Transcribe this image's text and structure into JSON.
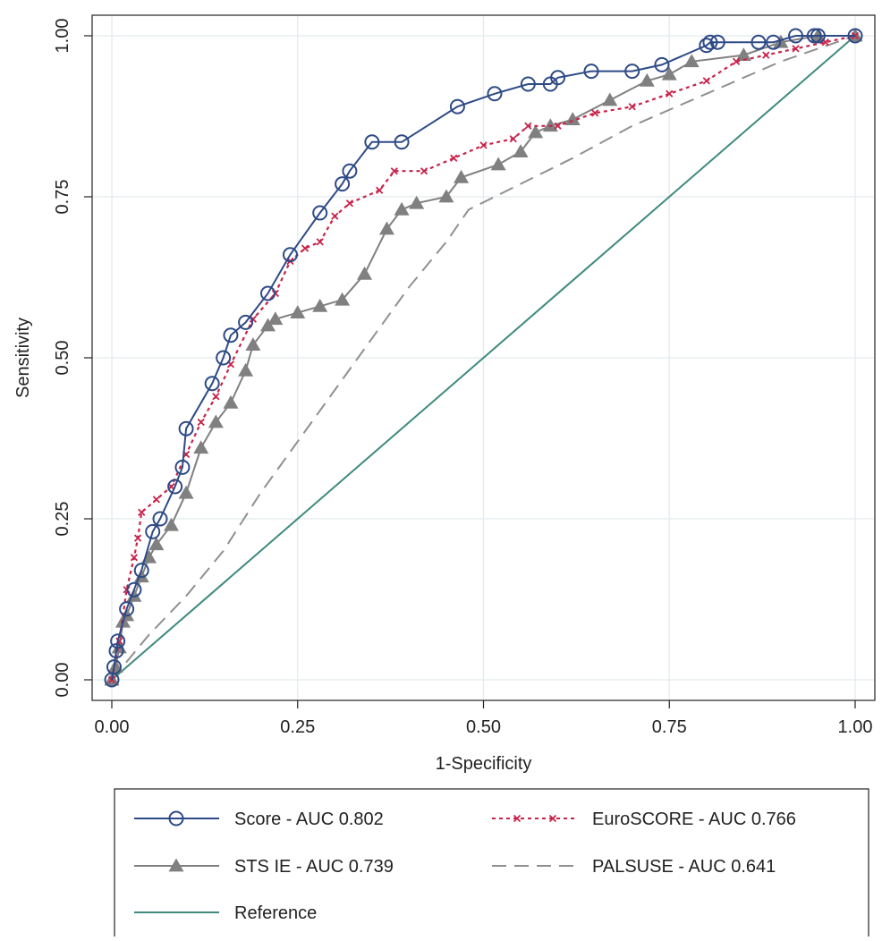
{
  "chart_data": {
    "type": "line",
    "title": "",
    "xlabel": "1-Specificity",
    "ylabel": "Sensitivity",
    "xlim": [
      0,
      1
    ],
    "ylim": [
      0,
      1
    ],
    "x_ticks": [
      "0.00",
      "0.25",
      "0.50",
      "0.75",
      "1.00"
    ],
    "y_ticks": [
      "0.00",
      "0.25",
      "0.50",
      "0.75",
      "1.00"
    ],
    "grid": true,
    "legend_position": "bottom",
    "series": [
      {
        "name": "Score - AUC 0.802",
        "color": "#2e4a86",
        "style": "solid",
        "marker": "circle-open",
        "points": [
          [
            0,
            0
          ],
          [
            0.003,
            0.02
          ],
          [
            0.006,
            0.045
          ],
          [
            0.008,
            0.06
          ],
          [
            0.02,
            0.11
          ],
          [
            0.03,
            0.14
          ],
          [
            0.04,
            0.17
          ],
          [
            0.055,
            0.23
          ],
          [
            0.065,
            0.25
          ],
          [
            0.085,
            0.3
          ],
          [
            0.095,
            0.33
          ],
          [
            0.1,
            0.39
          ],
          [
            0.135,
            0.46
          ],
          [
            0.15,
            0.5
          ],
          [
            0.16,
            0.535
          ],
          [
            0.18,
            0.555
          ],
          [
            0.21,
            0.6
          ],
          [
            0.24,
            0.66
          ],
          [
            0.28,
            0.725
          ],
          [
            0.31,
            0.77
          ],
          [
            0.32,
            0.79
          ],
          [
            0.35,
            0.835
          ],
          [
            0.39,
            0.835
          ],
          [
            0.465,
            0.89
          ],
          [
            0.515,
            0.91
          ],
          [
            0.56,
            0.925
          ],
          [
            0.59,
            0.925
          ],
          [
            0.6,
            0.935
          ],
          [
            0.645,
            0.945
          ],
          [
            0.7,
            0.945
          ],
          [
            0.74,
            0.955
          ],
          [
            0.8,
            0.985
          ],
          [
            0.805,
            0.99
          ],
          [
            0.815,
            0.99
          ],
          [
            0.87,
            0.99
          ],
          [
            0.89,
            0.99
          ],
          [
            0.92,
            1.0
          ],
          [
            0.945,
            1.0
          ],
          [
            0.95,
            1.0
          ],
          [
            1.0,
            1.0
          ]
        ]
      },
      {
        "name": "EuroSCORE - AUC 0.766",
        "color": "#c8234a",
        "style": "dotted",
        "marker": "x",
        "points": [
          [
            0,
            0
          ],
          [
            0.01,
            0.06
          ],
          [
            0.02,
            0.14
          ],
          [
            0.03,
            0.19
          ],
          [
            0.035,
            0.22
          ],
          [
            0.04,
            0.26
          ],
          [
            0.06,
            0.28
          ],
          [
            0.08,
            0.3
          ],
          [
            0.1,
            0.35
          ],
          [
            0.12,
            0.4
          ],
          [
            0.14,
            0.44
          ],
          [
            0.16,
            0.49
          ],
          [
            0.19,
            0.56
          ],
          [
            0.22,
            0.6
          ],
          [
            0.24,
            0.65
          ],
          [
            0.26,
            0.67
          ],
          [
            0.28,
            0.68
          ],
          [
            0.3,
            0.72
          ],
          [
            0.32,
            0.74
          ],
          [
            0.36,
            0.76
          ],
          [
            0.38,
            0.79
          ],
          [
            0.42,
            0.79
          ],
          [
            0.46,
            0.81
          ],
          [
            0.5,
            0.83
          ],
          [
            0.54,
            0.84
          ],
          [
            0.56,
            0.86
          ],
          [
            0.6,
            0.86
          ],
          [
            0.65,
            0.88
          ],
          [
            0.7,
            0.89
          ],
          [
            0.75,
            0.91
          ],
          [
            0.8,
            0.93
          ],
          [
            0.84,
            0.96
          ],
          [
            0.88,
            0.97
          ],
          [
            0.92,
            0.98
          ],
          [
            0.96,
            0.99
          ],
          [
            1.0,
            1.0
          ]
        ]
      },
      {
        "name": "STS IE - AUC 0.739",
        "color": "#808080",
        "style": "solid",
        "marker": "triangle",
        "points": [
          [
            0,
            0
          ],
          [
            0.005,
            0.02
          ],
          [
            0.01,
            0.05
          ],
          [
            0.015,
            0.09
          ],
          [
            0.02,
            0.1
          ],
          [
            0.03,
            0.13
          ],
          [
            0.04,
            0.16
          ],
          [
            0.05,
            0.19
          ],
          [
            0.06,
            0.21
          ],
          [
            0.08,
            0.24
          ],
          [
            0.1,
            0.29
          ],
          [
            0.12,
            0.36
          ],
          [
            0.14,
            0.4
          ],
          [
            0.16,
            0.43
          ],
          [
            0.18,
            0.48
          ],
          [
            0.19,
            0.52
          ],
          [
            0.21,
            0.55
          ],
          [
            0.22,
            0.56
          ],
          [
            0.25,
            0.57
          ],
          [
            0.28,
            0.58
          ],
          [
            0.31,
            0.59
          ],
          [
            0.34,
            0.63
          ],
          [
            0.37,
            0.7
          ],
          [
            0.39,
            0.73
          ],
          [
            0.41,
            0.74
          ],
          [
            0.45,
            0.75
          ],
          [
            0.47,
            0.78
          ],
          [
            0.52,
            0.8
          ],
          [
            0.55,
            0.82
          ],
          [
            0.57,
            0.85
          ],
          [
            0.59,
            0.86
          ],
          [
            0.62,
            0.87
          ],
          [
            0.67,
            0.9
          ],
          [
            0.72,
            0.93
          ],
          [
            0.75,
            0.94
          ],
          [
            0.78,
            0.96
          ],
          [
            0.85,
            0.97
          ],
          [
            0.9,
            0.99
          ],
          [
            0.95,
            1.0
          ],
          [
            1.0,
            1.0
          ]
        ]
      },
      {
        "name": "PALSUSE - AUC 0.641",
        "color": "#909090",
        "style": "dashed",
        "marker": "none",
        "points": [
          [
            0,
            0
          ],
          [
            0.05,
            0.07
          ],
          [
            0.1,
            0.13
          ],
          [
            0.15,
            0.2
          ],
          [
            0.2,
            0.29
          ],
          [
            0.25,
            0.37
          ],
          [
            0.3,
            0.45
          ],
          [
            0.35,
            0.53
          ],
          [
            0.4,
            0.61
          ],
          [
            0.45,
            0.68
          ],
          [
            0.48,
            0.73
          ],
          [
            0.55,
            0.77
          ],
          [
            0.62,
            0.81
          ],
          [
            0.7,
            0.86
          ],
          [
            0.8,
            0.91
          ],
          [
            0.9,
            0.96
          ],
          [
            1.0,
            1.0
          ]
        ]
      },
      {
        "name": "Reference",
        "color": "#3f8a7d",
        "style": "solid",
        "marker": "none",
        "points": [
          [
            0,
            0
          ],
          [
            1,
            1
          ]
        ]
      }
    ]
  }
}
